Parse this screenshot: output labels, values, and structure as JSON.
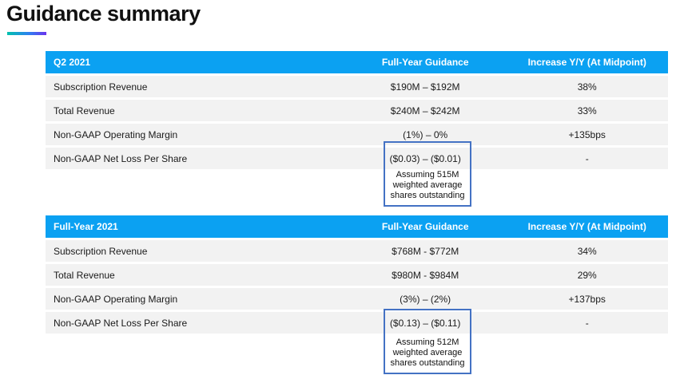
{
  "page": {
    "title": "Guidance summary"
  },
  "colors": {
    "header_blue": "#0ba1f2",
    "row_gray": "#f2f2f2",
    "callout_border_blue": "#4472c4",
    "accent_gradient_start": "#00c2ae",
    "accent_gradient_end": "#6a33ee",
    "header_text": "#ffffff",
    "body_text": "#1a1a1a"
  },
  "tables": [
    {
      "period_label": "Q2 2021",
      "col2_header": "Full-Year Guidance",
      "col3_header": "Increase Y/Y (At Midpoint)",
      "rows": [
        {
          "metric": "Subscription Revenue",
          "guidance": "$190M – $192M",
          "increase": "38%"
        },
        {
          "metric": "Total Revenue",
          "guidance": "$240M – $242M",
          "increase": "33%"
        },
        {
          "metric": "Non-GAAP Operating Margin",
          "guidance": "(1%) – 0%",
          "increase": "+135bps"
        },
        {
          "metric": "Non-GAAP Net Loss Per Share",
          "guidance": "($0.03) – ($0.01)",
          "increase": "-"
        }
      ],
      "callout_note": "Assuming 515M weighted average shares outstanding"
    },
    {
      "period_label": "Full-Year 2021",
      "col2_header": "Full-Year Guidance",
      "col3_header": "Increase Y/Y (At Midpoint)",
      "rows": [
        {
          "metric": "Subscription Revenue",
          "guidance": "$768M - $772M",
          "increase": "34%"
        },
        {
          "metric": "Total Revenue",
          "guidance": "$980M - $984M",
          "increase": "29%"
        },
        {
          "metric": "Non-GAAP Operating Margin",
          "guidance": "(3%) – (2%)",
          "increase": "+137bps"
        },
        {
          "metric": "Non-GAAP Net Loss Per Share",
          "guidance": "($0.13) – ($0.11)",
          "increase": "-"
        }
      ],
      "callout_note": "Assuming 512M weighted average shares outstanding"
    }
  ]
}
